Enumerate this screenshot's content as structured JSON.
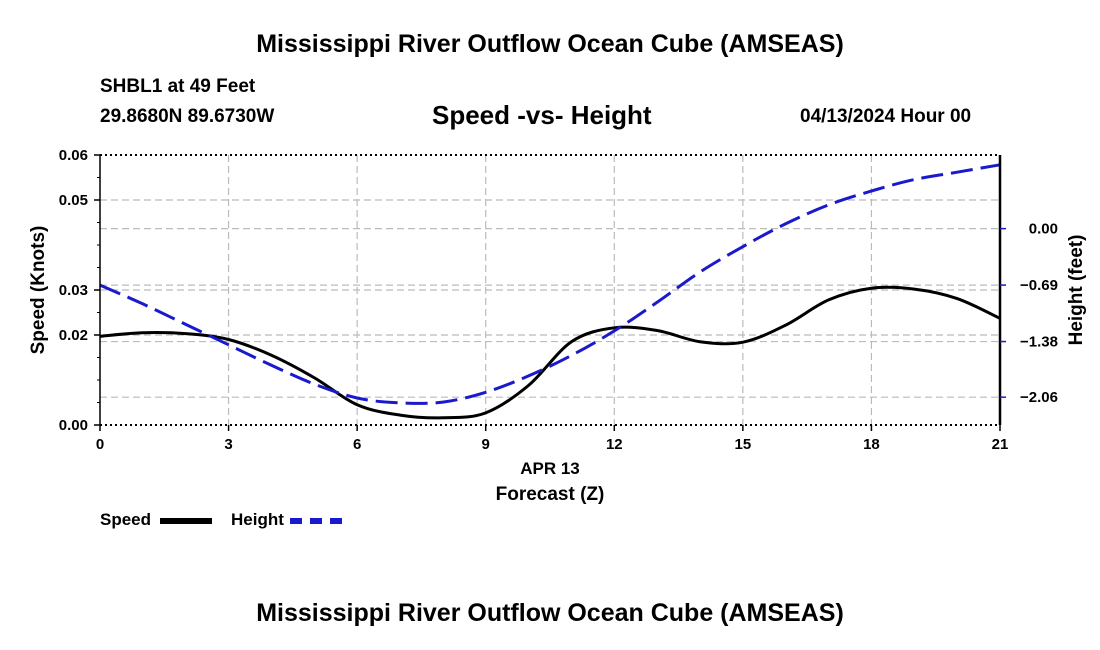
{
  "header": {
    "title": "Mississippi River Outflow Ocean Cube (AMSEAS)",
    "station": "SHBL1 at 49 Feet",
    "coords": "29.8680N  89.6730W",
    "subtitle": "Speed -vs- Height",
    "date": "04/13/2024 Hour 00"
  },
  "legend": {
    "speed_label": "Speed",
    "height_label": "Height"
  },
  "colors": {
    "speed": "#000000",
    "height": "#1a1acc",
    "grid": "#bbbbbb"
  },
  "chart_data": {
    "type": "line",
    "title": "Speed -vs- Height",
    "xlabel": "Forecast (Z)",
    "xsublabel": "APR 13",
    "ylabel": "Speed (Knots)",
    "y2label": "Height (feet)",
    "xlim": [
      0,
      21
    ],
    "ylim": [
      0,
      0.06
    ],
    "y2lim": [
      -2.4,
      0.9
    ],
    "xticks": [
      0,
      3,
      6,
      9,
      12,
      15,
      18,
      21
    ],
    "xtick_labels": [
      "0",
      "3",
      "6",
      "9",
      "12",
      "15",
      "18",
      "21"
    ],
    "yticks": [
      0,
      0.02,
      0.03,
      0.05,
      0.06
    ],
    "ytick_labels": [
      "0.00",
      "0.02",
      "0.03",
      "0.05",
      "0.06"
    ],
    "y2ticks": [
      -2.06,
      -1.38,
      -0.69,
      0.0
    ],
    "y2tick_labels": [
      "−2.06",
      "−1.38",
      "−0.69",
      "0.00"
    ],
    "grid": true,
    "series": [
      {
        "name": "Speed",
        "axis": "left",
        "style": "solid",
        "x": [
          0,
          1,
          2,
          3,
          4,
          5,
          6,
          7,
          8,
          9,
          10,
          11,
          12,
          13,
          14,
          15,
          16,
          17,
          18,
          19,
          20,
          21
        ],
        "values": [
          0.0197,
          0.0205,
          0.0203,
          0.019,
          0.0155,
          0.0105,
          0.0045,
          0.0022,
          0.0016,
          0.0027,
          0.0088,
          0.0185,
          0.0216,
          0.021,
          0.0185,
          0.0184,
          0.0222,
          0.0278,
          0.0304,
          0.0302,
          0.0281,
          0.0237
        ]
      },
      {
        "name": "Height",
        "axis": "right",
        "style": "dashed",
        "x": [
          0,
          1,
          2,
          3,
          4,
          5,
          6,
          7,
          8,
          9,
          10,
          11,
          12,
          13,
          14,
          15,
          16,
          17,
          18,
          19,
          20,
          21
        ],
        "values": [
          -0.69,
          -0.92,
          -1.17,
          -1.42,
          -1.67,
          -1.9,
          -2.07,
          -2.13,
          -2.12,
          -2.0,
          -1.8,
          -1.55,
          -1.25,
          -0.9,
          -0.53,
          -0.22,
          0.06,
          0.29,
          0.46,
          0.6,
          0.69,
          0.78
        ]
      }
    ]
  }
}
